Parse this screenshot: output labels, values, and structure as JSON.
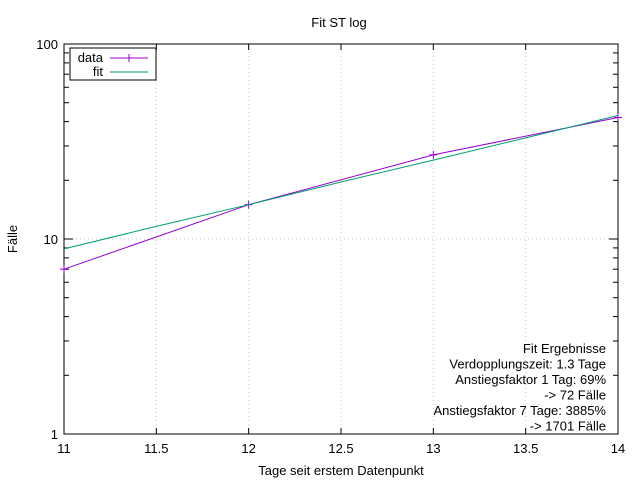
{
  "chart_data": {
    "type": "line",
    "title": "Fit ST log",
    "xlabel": "Tage seit erstem Datenpunkt",
    "ylabel": "Fälle",
    "xlim": [
      11,
      14
    ],
    "ylim": [
      1,
      100
    ],
    "yscale": "log",
    "x_ticks": [
      11,
      11.5,
      12,
      12.5,
      13,
      13.5,
      14
    ],
    "x_tick_labels": [
      "11",
      "11.5",
      "12",
      "12.5",
      "13",
      "13.5",
      "14"
    ],
    "y_ticks": [
      1,
      10,
      100
    ],
    "y_tick_labels": [
      "1",
      "10",
      "100"
    ],
    "grid": true,
    "legend_position": "top-left",
    "series": [
      {
        "name": "data",
        "color": "#9400d3",
        "marker": "plus",
        "x": [
          11,
          12,
          13,
          14
        ],
        "y": [
          7,
          15,
          27,
          42
        ]
      },
      {
        "name": "fit",
        "color": "#009e73",
        "marker": "none",
        "x": [
          11,
          11.5,
          12,
          12.5,
          13,
          13.5,
          14
        ],
        "y": [
          8.9,
          11.6,
          15.0,
          19.6,
          25.4,
          33.0,
          43.0
        ]
      }
    ],
    "annotation_lines": [
      "Fit Ergebnisse",
      "Verdopplungszeit: 1.3 Tage",
      "Anstiegsfaktor 1 Tag: 69%",
      "-> 72 Fälle",
      "Anstiegsfaktor 7 Tage: 3885%",
      "-> 1701 Fälle"
    ]
  }
}
